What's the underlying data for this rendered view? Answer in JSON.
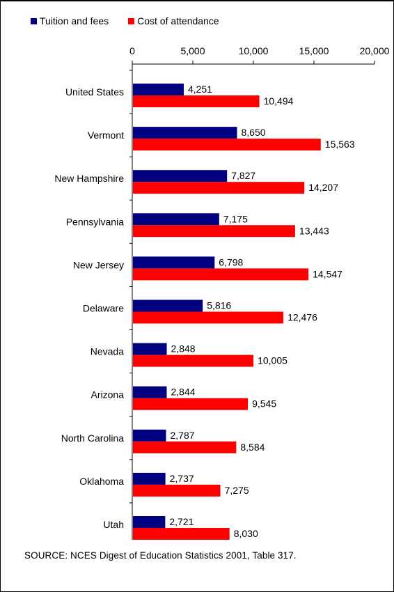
{
  "chart_data": {
    "type": "bar",
    "orientation": "horizontal",
    "categories": [
      "United States",
      "Vermont",
      "New Hampshire",
      "Pennsylvania",
      "New Jersey",
      "Delaware",
      "Nevada",
      "Arizona",
      "North Carolina",
      "Oklahoma",
      "Utah"
    ],
    "series": [
      {
        "name": "Tuition and fees",
        "color": "#000080",
        "values": [
          4251,
          8650,
          7827,
          7175,
          6798,
          5816,
          2848,
          2844,
          2787,
          2737,
          2721
        ],
        "labels": [
          "4,251",
          "8,650",
          "7,827",
          "7,175",
          "6,798",
          "5,816",
          "2,848",
          "2,844",
          "2,787",
          "2,737",
          "2,721"
        ]
      },
      {
        "name": "Cost of attendance",
        "color": "#ff0000",
        "values": [
          10494,
          15563,
          14207,
          13443,
          14547,
          12476,
          10005,
          9545,
          8584,
          7275,
          8030
        ],
        "labels": [
          "10,494",
          "15,563",
          "14,207",
          "13,443",
          "14,547",
          "12,476",
          "10,005",
          "9,545",
          "8,584",
          "7,275",
          "8,030"
        ]
      }
    ],
    "xlim": [
      0,
      20000
    ],
    "ticks": [
      0,
      5000,
      10000,
      15000,
      20000
    ],
    "tick_labels": [
      "0",
      "5,000",
      "10,000",
      "15,000",
      "20,000"
    ],
    "axis_position": "top",
    "legend_position": "top-left",
    "grid": false
  },
  "source": "SOURCE: NCES Digest of Education Statistics 2001, Table 317."
}
